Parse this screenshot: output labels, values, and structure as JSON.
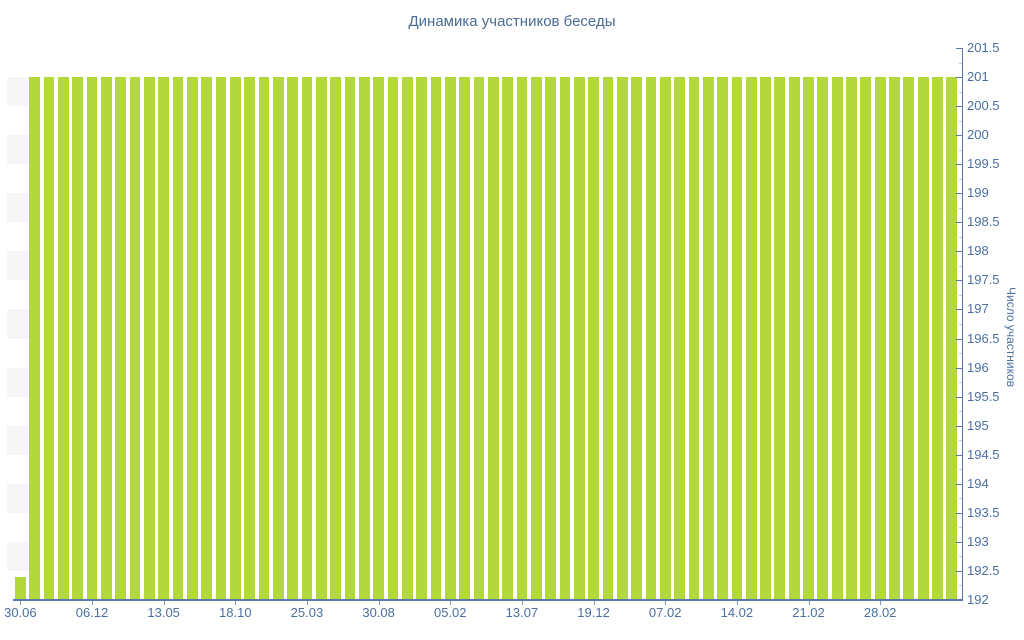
{
  "title": "Динамика участников беседы",
  "colors": {
    "bar": "#b3d83b",
    "axis": "#5b7ca8",
    "label_text": "#4c6f9f",
    "title_text": "#4a6b94",
    "stripe": "#f6f6f6",
    "background": "#ffffff"
  },
  "chart_data": {
    "type": "bar",
    "title": "Динамика участников беседы",
    "xlabel": "",
    "ylabel": "Число участников",
    "ylim": [
      192,
      201.5
    ],
    "ytick_step": 0.5,
    "ytick_labels": [
      "192",
      "192.5",
      "193",
      "193.5",
      "194",
      "194.5",
      "195",
      "195.5",
      "196",
      "196.5",
      "197",
      "197.5",
      "198",
      "198.5",
      "199",
      "199.5",
      "200",
      "200.5",
      "201",
      "201.5"
    ],
    "x_tick_labels": [
      "30.06",
      "06.12",
      "13.05",
      "18.10",
      "25.03",
      "30.08",
      "05.02",
      "13.07",
      "19.12",
      "07.02",
      "14.02",
      "21.02",
      "28.02"
    ],
    "x_tick_every": 5,
    "legend": "none",
    "grid": "alternating horizontal half-unit bands, visible at left margin",
    "y_axis_position": "right",
    "values": [
      192.4,
      201,
      201,
      201,
      201,
      201,
      201,
      201,
      201,
      201,
      201,
      201,
      201,
      201,
      201,
      201,
      201,
      201,
      201,
      201,
      201,
      201,
      201,
      201,
      201,
      201,
      201,
      201,
      201,
      201,
      201,
      201,
      201,
      201,
      201,
      201,
      201,
      201,
      201,
      201,
      201,
      201,
      201,
      201,
      201,
      201,
      201,
      201,
      201,
      201,
      201,
      201,
      201,
      201,
      201,
      201,
      201,
      201,
      201,
      201,
      201,
      201,
      201,
      201,
      201,
      201
    ]
  }
}
